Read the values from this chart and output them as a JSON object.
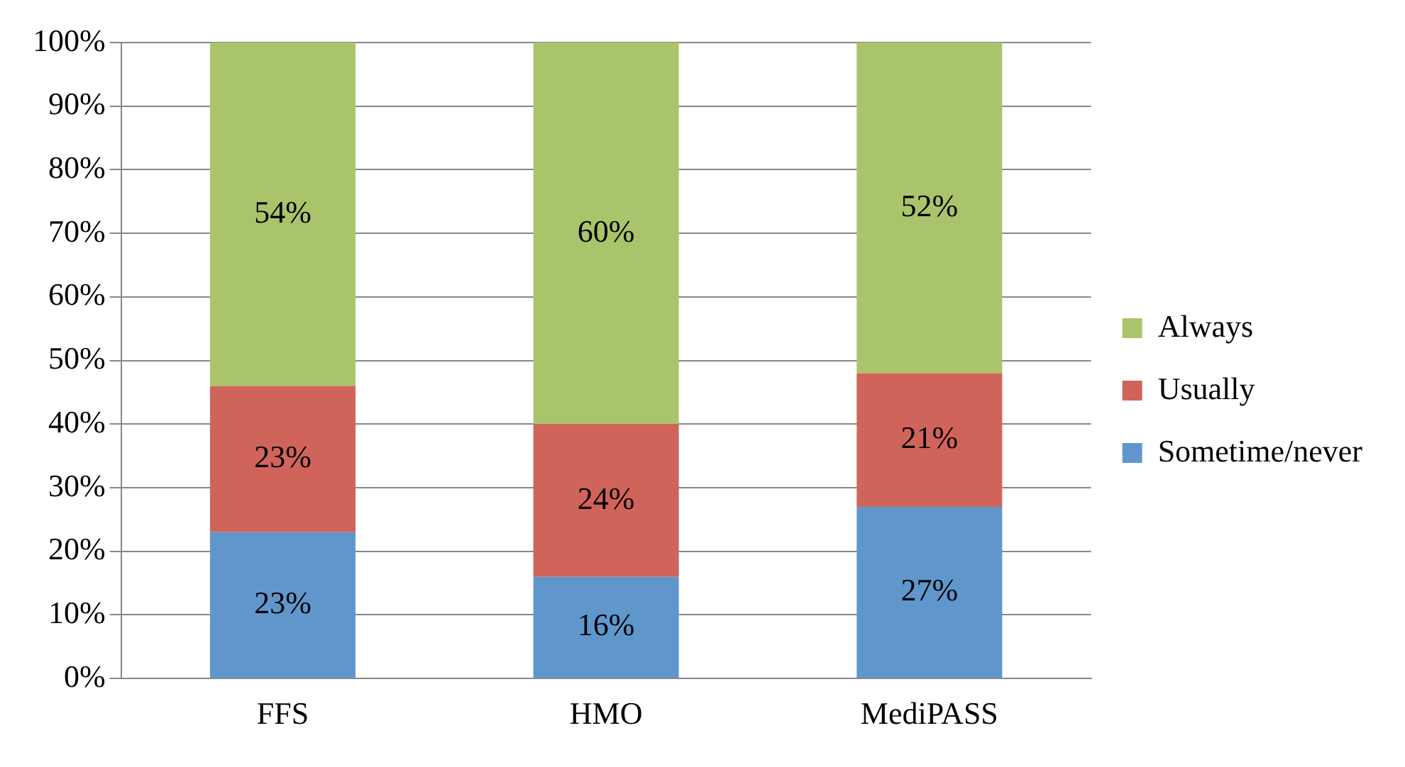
{
  "chart_data": {
    "type": "bar",
    "stacked": true,
    "categories": [
      "FFS",
      "HMO",
      "MediPASS"
    ],
    "series": [
      {
        "name": "Sometime/never",
        "color": "#5f97cd",
        "values": [
          23,
          16,
          27
        ],
        "value_labels": [
          "23%",
          "16%",
          "27%"
        ]
      },
      {
        "name": "Usually",
        "color": "#d0645b",
        "values": [
          23,
          24,
          21
        ],
        "value_labels": [
          "23%",
          "24%",
          "21%"
        ]
      },
      {
        "name": "Always",
        "color": "#a9c46b",
        "values": [
          54,
          60,
          52
        ],
        "value_labels": [
          "54%",
          "60%",
          "52%"
        ]
      }
    ],
    "ylim": [
      0,
      100
    ],
    "yticks": [
      {
        "value": 0,
        "label": "0%"
      },
      {
        "value": 10,
        "label": "10%"
      },
      {
        "value": 20,
        "label": "20%"
      },
      {
        "value": 30,
        "label": "30%"
      },
      {
        "value": 40,
        "label": "40%"
      },
      {
        "value": 50,
        "label": "50%"
      },
      {
        "value": 60,
        "label": "60%"
      },
      {
        "value": 70,
        "label": "70%"
      },
      {
        "value": 80,
        "label": "80%"
      },
      {
        "value": 90,
        "label": "90%"
      },
      {
        "value": 100,
        "label": "100%"
      }
    ],
    "grid": "y",
    "legend": "right"
  }
}
